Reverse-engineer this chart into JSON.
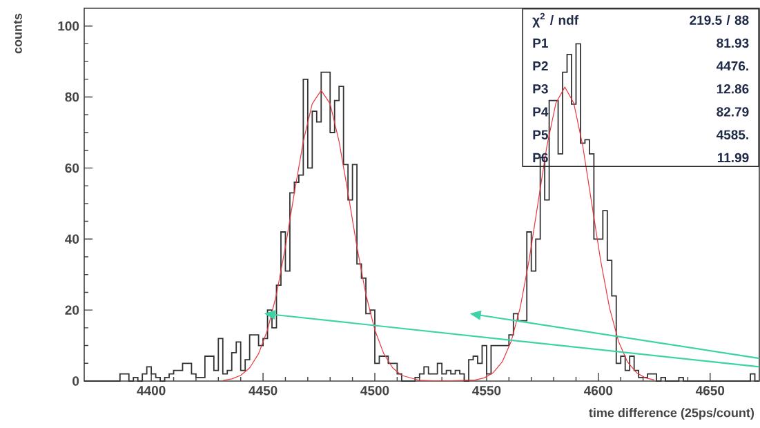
{
  "chart_data": {
    "type": "histogram",
    "xlabel": "time difference (25ps/count)",
    "ylabel": "counts",
    "xlim": [
      4370,
      4672
    ],
    "ylim": [
      0,
      105
    ],
    "xticks": [
      4400,
      4450,
      4500,
      4550,
      4600,
      4650
    ],
    "yticks": [
      0,
      20,
      40,
      60,
      80,
      100
    ],
    "annotations": [
      "χ$^{2}$ / ndf",
      "219.5  /  88",
      "P1",
      "81.93",
      "P2",
      "4476.",
      "P3",
      "12.86",
      "P4",
      "82.79",
      "P5",
      "4585.",
      "P6",
      "11.99"
    ],
    "series": [
      {
        "type": "histogram",
        "color": "#333333",
        "bins": [
          4370,
          4372,
          4374,
          4376,
          4378,
          4380,
          4382,
          4384,
          4386,
          4388,
          4390,
          4392,
          4394,
          4396,
          4398,
          4400,
          4402,
          4404,
          4406,
          4408,
          4410,
          4412,
          4414,
          4416,
          4418,
          4420,
          4422,
          4424,
          4426,
          4428,
          4430,
          4432,
          4434,
          4436,
          4438,
          4440,
          4442,
          4444,
          4446,
          4448,
          4450,
          4452,
          4454,
          4456,
          4458,
          4460,
          4462,
          4464,
          4466,
          4468,
          4470,
          4472,
          4474,
          4476,
          4478,
          4480,
          4482,
          4484,
          4486,
          4488,
          4490,
          4492,
          4494,
          4496,
          4498,
          4500,
          4502,
          4504,
          4506,
          4508,
          4510,
          4512,
          4514,
          4516,
          4518,
          4520,
          4522,
          4524,
          4526,
          4528,
          4530,
          4532,
          4534,
          4536,
          4538,
          4540,
          4542,
          4544,
          4546,
          4548,
          4550,
          4552,
          4554,
          4556,
          4558,
          4560,
          4562,
          4564,
          4566,
          4568,
          4570,
          4572,
          4574,
          4576,
          4578,
          4580,
          4582,
          4584,
          4586,
          4588,
          4590,
          4592,
          4594,
          4596,
          4598,
          4600,
          4602,
          4604,
          4606,
          4608,
          4610,
          4612,
          4614,
          4616,
          4618,
          4620,
          4622,
          4624,
          4626,
          4628,
          4630,
          4632,
          4634,
          4636,
          4638,
          4640,
          4642,
          4644,
          4646,
          4648,
          4650,
          4652,
          4654,
          4656,
          4658,
          4660,
          4662,
          4664,
          4666,
          4668,
          4670,
          4672
        ],
        "values": [
          0,
          0,
          0,
          0,
          0,
          0,
          0,
          0,
          2,
          2,
          0,
          1,
          0,
          2,
          4,
          2,
          1,
          0,
          1,
          2,
          3,
          3,
          5,
          5,
          2,
          1,
          1,
          7,
          7,
          3,
          12,
          2,
          3,
          8,
          11,
          3,
          6,
          13,
          13,
          10,
          12,
          20,
          15,
          27,
          42,
          31,
          53,
          56,
          58,
          85,
          60,
          76,
          73,
          87,
          87,
          70,
          79,
          83,
          61,
          51,
          61,
          33,
          29,
          19,
          20,
          5,
          7,
          7,
          5,
          5,
          2,
          0,
          0,
          0,
          1,
          2,
          4,
          2,
          2,
          5,
          2,
          3,
          2,
          3,
          2,
          0,
          6,
          7,
          5,
          10,
          2,
          10,
          10,
          10,
          10,
          13,
          19,
          17,
          17,
          42,
          31,
          40,
          63,
          51,
          79,
          79,
          64,
          87,
          92,
          78,
          95,
          67,
          68,
          64,
          40,
          40,
          48,
          34,
          24,
          5,
          7,
          3,
          7,
          3,
          1,
          1,
          2,
          2,
          0,
          1,
          0,
          0,
          0,
          1,
          0,
          0,
          0,
          0,
          0,
          0,
          0,
          0,
          0,
          0,
          0,
          0,
          0,
          0,
          0,
          2,
          0
        ]
      },
      {
        "type": "line",
        "color": "#e8383d",
        "x": [
          4432,
          4436,
          4440,
          4444,
          4448,
          4452,
          4456,
          4460,
          4464,
          4468,
          4472,
          4476,
          4480,
          4484,
          4488,
          4492,
          4496,
          4500,
          4504,
          4508,
          4512,
          4520,
          4530,
          4545,
          4549,
          4553,
          4557,
          4561,
          4565,
          4569,
          4573,
          4577,
          4581,
          4585,
          4589,
          4593,
          4597,
          4601,
          4605,
          4609,
          4613,
          4617,
          4621,
          4625
        ],
        "values": [
          0.2,
          0.6,
          1.6,
          3.7,
          7.7,
          14.4,
          24.4,
          37.8,
          53.0,
          67.5,
          78.1,
          81.9,
          78.1,
          67.5,
          53.0,
          37.8,
          24.4,
          14.4,
          7.7,
          3.7,
          1.6,
          0.2,
          0,
          0.3,
          0.9,
          2.4,
          5.4,
          11.2,
          20.6,
          34.0,
          50.2,
          66.3,
          78.3,
          82.8,
          78.3,
          66.3,
          50.2,
          34.0,
          20.6,
          11.2,
          5.4,
          2.4,
          0.9,
          0.3
        ]
      }
    ]
  }
}
